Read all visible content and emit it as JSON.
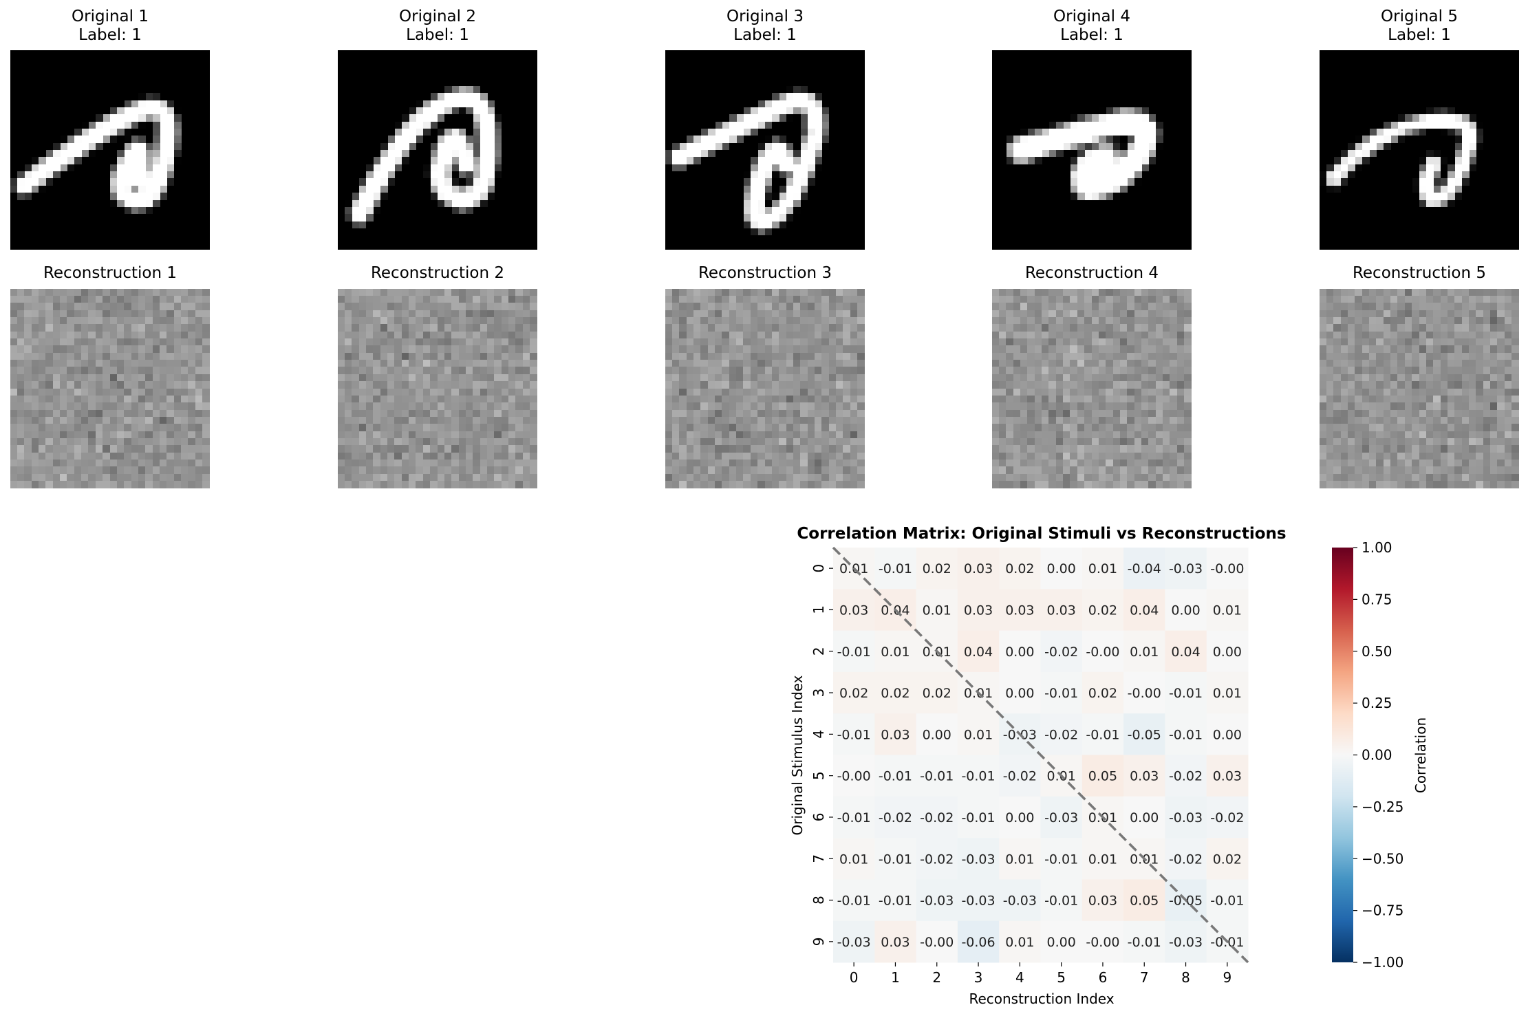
{
  "panels": {
    "originals": [
      {
        "title": "Original 1",
        "label": "Label: 1"
      },
      {
        "title": "Original 2",
        "label": "Label: 1"
      },
      {
        "title": "Original 3",
        "label": "Label: 1"
      },
      {
        "title": "Original 4",
        "label": "Label: 1"
      },
      {
        "title": "Original 5",
        "label": "Label: 1"
      }
    ],
    "reconstructions": [
      {
        "title": "Reconstruction 1"
      },
      {
        "title": "Reconstruction 2"
      },
      {
        "title": "Reconstruction 3"
      },
      {
        "title": "Reconstruction 4"
      },
      {
        "title": "Reconstruction 5"
      }
    ]
  },
  "chart_data": {
    "type": "heatmap",
    "title": "Correlation Matrix: Original Stimuli vs Reconstructions",
    "xlabel": "Reconstruction Index",
    "ylabel": "Original Stimulus Index",
    "x_ticks": [
      "0",
      "1",
      "2",
      "3",
      "4",
      "5",
      "6",
      "7",
      "8",
      "9"
    ],
    "y_ticks": [
      "0",
      "1",
      "2",
      "3",
      "4",
      "5",
      "6",
      "7",
      "8",
      "9"
    ],
    "colormap": "RdBu_r",
    "vmin": -1.0,
    "vmax": 1.0,
    "colorbar_label": "Correlation",
    "colorbar_ticks": [
      "1.00",
      "0.75",
      "0.50",
      "0.25",
      "0.00",
      "−0.25",
      "−0.50",
      "−0.75",
      "−1.00"
    ],
    "values": [
      [
        0.01,
        -0.01,
        0.02,
        0.03,
        0.02,
        0.0,
        0.01,
        -0.04,
        -0.03,
        -0.0
      ],
      [
        0.03,
        0.04,
        0.01,
        0.03,
        0.03,
        0.03,
        0.02,
        0.04,
        0.0,
        0.01
      ],
      [
        -0.01,
        0.01,
        0.01,
        0.04,
        0.0,
        -0.02,
        -0.0,
        0.01,
        0.04,
        0.0
      ],
      [
        0.02,
        0.02,
        0.02,
        0.01,
        0.0,
        -0.01,
        0.02,
        -0.0,
        -0.01,
        0.01
      ],
      [
        -0.01,
        0.03,
        0.0,
        0.01,
        -0.03,
        -0.02,
        -0.01,
        -0.05,
        -0.01,
        0.0
      ],
      [
        -0.0,
        -0.01,
        -0.01,
        -0.01,
        -0.02,
        0.01,
        0.05,
        0.03,
        -0.02,
        0.03
      ],
      [
        -0.01,
        -0.02,
        -0.02,
        -0.01,
        0.0,
        -0.03,
        0.01,
        0.0,
        -0.03,
        -0.02
      ],
      [
        0.01,
        -0.01,
        -0.02,
        -0.03,
        0.01,
        -0.01,
        0.01,
        0.01,
        -0.02,
        0.02
      ],
      [
        -0.01,
        -0.01,
        -0.03,
        -0.03,
        -0.03,
        -0.01,
        0.03,
        0.05,
        -0.05,
        -0.01
      ],
      [
        -0.03,
        0.03,
        -0.0,
        -0.06,
        0.01,
        0.0,
        -0.0,
        -0.01,
        -0.03,
        -0.01
      ]
    ],
    "annotation": "dashed diagonal line",
    "grid": false
  }
}
